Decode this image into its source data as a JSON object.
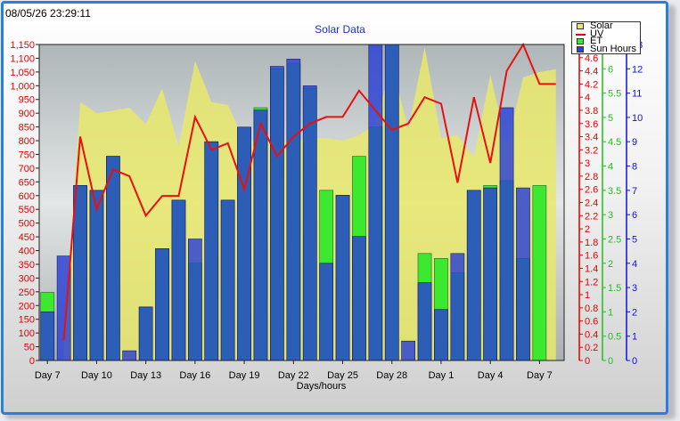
{
  "timestamp": "08/05/26 23:29:11",
  "colors": {
    "solar": "#e8e86a",
    "uv": "#e81010",
    "et": "#3ce830",
    "sun": "#2a3fd6",
    "left_axis": "#e00000",
    "mid_axis": "#20c020",
    "right_axis": "#1010e0",
    "frame": "#2a7de1"
  },
  "chart_data": {
    "type": "bar",
    "title": "Solar Data",
    "xlabel": "Days/hours",
    "grid": false,
    "legend_position": "top-right",
    "x_tick_labels": [
      "Day 7",
      "Day 10",
      "Day 13",
      "Day 16",
      "Day 19",
      "Day 22",
      "Day 25",
      "Day 28",
      "Day 1",
      "Day 4",
      "Day 7"
    ],
    "days": 32,
    "axes": {
      "solar": {
        "ylim": [
          0,
          1150
        ],
        "ticks": [
          0,
          50,
          100,
          150,
          200,
          250,
          300,
          350,
          400,
          450,
          500,
          550,
          600,
          650,
          700,
          750,
          800,
          850,
          900,
          950,
          1000,
          1050,
          1100,
          1150
        ],
        "tick_labels": [
          "0",
          "50",
          "100",
          "150",
          "200",
          "250",
          "300",
          "350",
          "400",
          "450",
          "500",
          "550",
          "600",
          "650",
          "700",
          "750",
          "800",
          "850",
          "900",
          "950",
          "1,000",
          "1,050",
          "1,100",
          "1,150"
        ]
      },
      "uv": {
        "ylim": [
          0,
          4.8
        ],
        "ticks": [
          0,
          0.2,
          0.4,
          0.6,
          0.8,
          1,
          1.2,
          1.4,
          1.6,
          1.8,
          2,
          2.2,
          2.4,
          2.6,
          2.8,
          3,
          3.2,
          3.4,
          3.6,
          3.8,
          4,
          4.2,
          4.4,
          4.6,
          4.8
        ],
        "tick_labels": [
          "0",
          "0.2",
          "0.4",
          "0.6",
          "0.8",
          "1",
          "1.2",
          "1.4",
          "1.6",
          "1.8",
          "2",
          "2.2",
          "2.4",
          "2.6",
          "2.8",
          "3",
          "3.2",
          "3.4",
          "3.6",
          "3.8",
          "4",
          "4.2",
          "4.4",
          "4.6",
          "4.8"
        ]
      },
      "et": {
        "ylim": [
          0,
          6.5
        ],
        "ticks": [
          0,
          0.5,
          1,
          1.5,
          2,
          2.5,
          3,
          3.5,
          4,
          4.5,
          5,
          5.5,
          6,
          6.5
        ],
        "tick_labels": [
          "0",
          "0.5",
          "1",
          "1.5",
          "2",
          "2.5",
          "3",
          "3.5",
          "4",
          "4.5",
          "5",
          "5.5",
          "6",
          "6.5"
        ]
      },
      "sun": {
        "ylim": [
          0,
          13
        ],
        "ticks": [
          0,
          1,
          2,
          3,
          4,
          5,
          6,
          7,
          8,
          9,
          10,
          11,
          12,
          13
        ],
        "tick_labels": [
          "0",
          "1",
          "2",
          "3",
          "4",
          "5",
          "6",
          "7",
          "8",
          "9",
          "10",
          "11",
          "12",
          "13"
        ]
      }
    },
    "series": [
      {
        "name": "Solar",
        "axis": "solar",
        "values": [
          null,
          40,
          940,
          900,
          910,
          920,
          860,
          990,
          780,
          1090,
          940,
          930,
          800,
          800,
          800,
          790,
          810,
          810,
          800,
          820,
          860,
          1080,
          840,
          1140,
          810,
          820,
          740,
          1040,
          780,
          1030,
          1050,
          1060
        ]
      },
      {
        "name": "UV",
        "axis": "uv",
        "values": [
          null,
          0.3,
          3.4,
          2.3,
          2.9,
          2.8,
          2.2,
          2.5,
          2.5,
          3.7,
          3.2,
          3.3,
          2.6,
          3.6,
          3.1,
          3.4,
          3.6,
          3.7,
          3.7,
          4.1,
          3.8,
          3.5,
          3.6,
          4.0,
          3.9,
          2.7,
          4.0,
          3.0,
          4.4,
          4.8,
          4.2,
          4.2
        ]
      },
      {
        "name": "ET",
        "axis": "et",
        "values": [
          1.4,
          0,
          3.6,
          3.5,
          4.2,
          0,
          1.1,
          2.3,
          3.3,
          2.0,
          4.5,
          3.3,
          4.8,
          5.2,
          6.0,
          6.1,
          5.6,
          3.5,
          3.4,
          4.2,
          4.8,
          6.5,
          0,
          2.2,
          2.1,
          1.8,
          3.5,
          3.6,
          3.7,
          2.1,
          3.6,
          0
        ]
      },
      {
        "name": "Sun Hours",
        "axis": "sun",
        "values": [
          2.0,
          4.3,
          7.2,
          7.0,
          8.4,
          0.4,
          2.2,
          4.6,
          6.6,
          5.0,
          9.0,
          6.6,
          9.6,
          10.3,
          12.1,
          12.4,
          11.3,
          4.0,
          6.8,
          5.1,
          13.0,
          13.0,
          0.8,
          3.2,
          2.1,
          4.4,
          7.0,
          7.1,
          10.4,
          7.1,
          0,
          0
        ]
      }
    ]
  }
}
